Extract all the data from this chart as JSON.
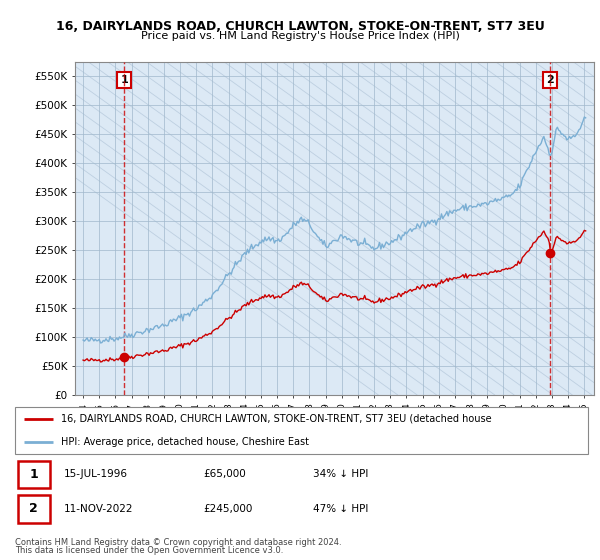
{
  "title1": "16, DAIRYLANDS ROAD, CHURCH LAWTON, STOKE-ON-TRENT, ST7 3EU",
  "title2": "Price paid vs. HM Land Registry's House Price Index (HPI)",
  "sale1_date": "15-JUL-1996",
  "sale1_year": 1996.54,
  "sale1_price": 65000,
  "sale1_hpi_approx": 96000,
  "sale2_date": "11-NOV-2022",
  "sale2_year": 2022.87,
  "sale2_price": 245000,
  "sale2_hpi_approx": 416000,
  "legend1": "16, DAIRYLANDS ROAD, CHURCH LAWTON, STOKE-ON-TRENT, ST7 3EU (detached house",
  "legend2": "HPI: Average price, detached house, Cheshire East",
  "footnote1": "Contains HM Land Registry data © Crown copyright and database right 2024.",
  "footnote2": "This data is licensed under the Open Government Licence v3.0.",
  "red_color": "#cc0000",
  "blue_color": "#7bafd4",
  "plot_bg": "#dce9f5",
  "hatch_color": "#b0c4d8",
  "grid_color": "#a0b8cc",
  "ylim_max": 575000,
  "ylim_min": 0,
  "xlim_min": 1993.5,
  "xlim_max": 2025.6
}
